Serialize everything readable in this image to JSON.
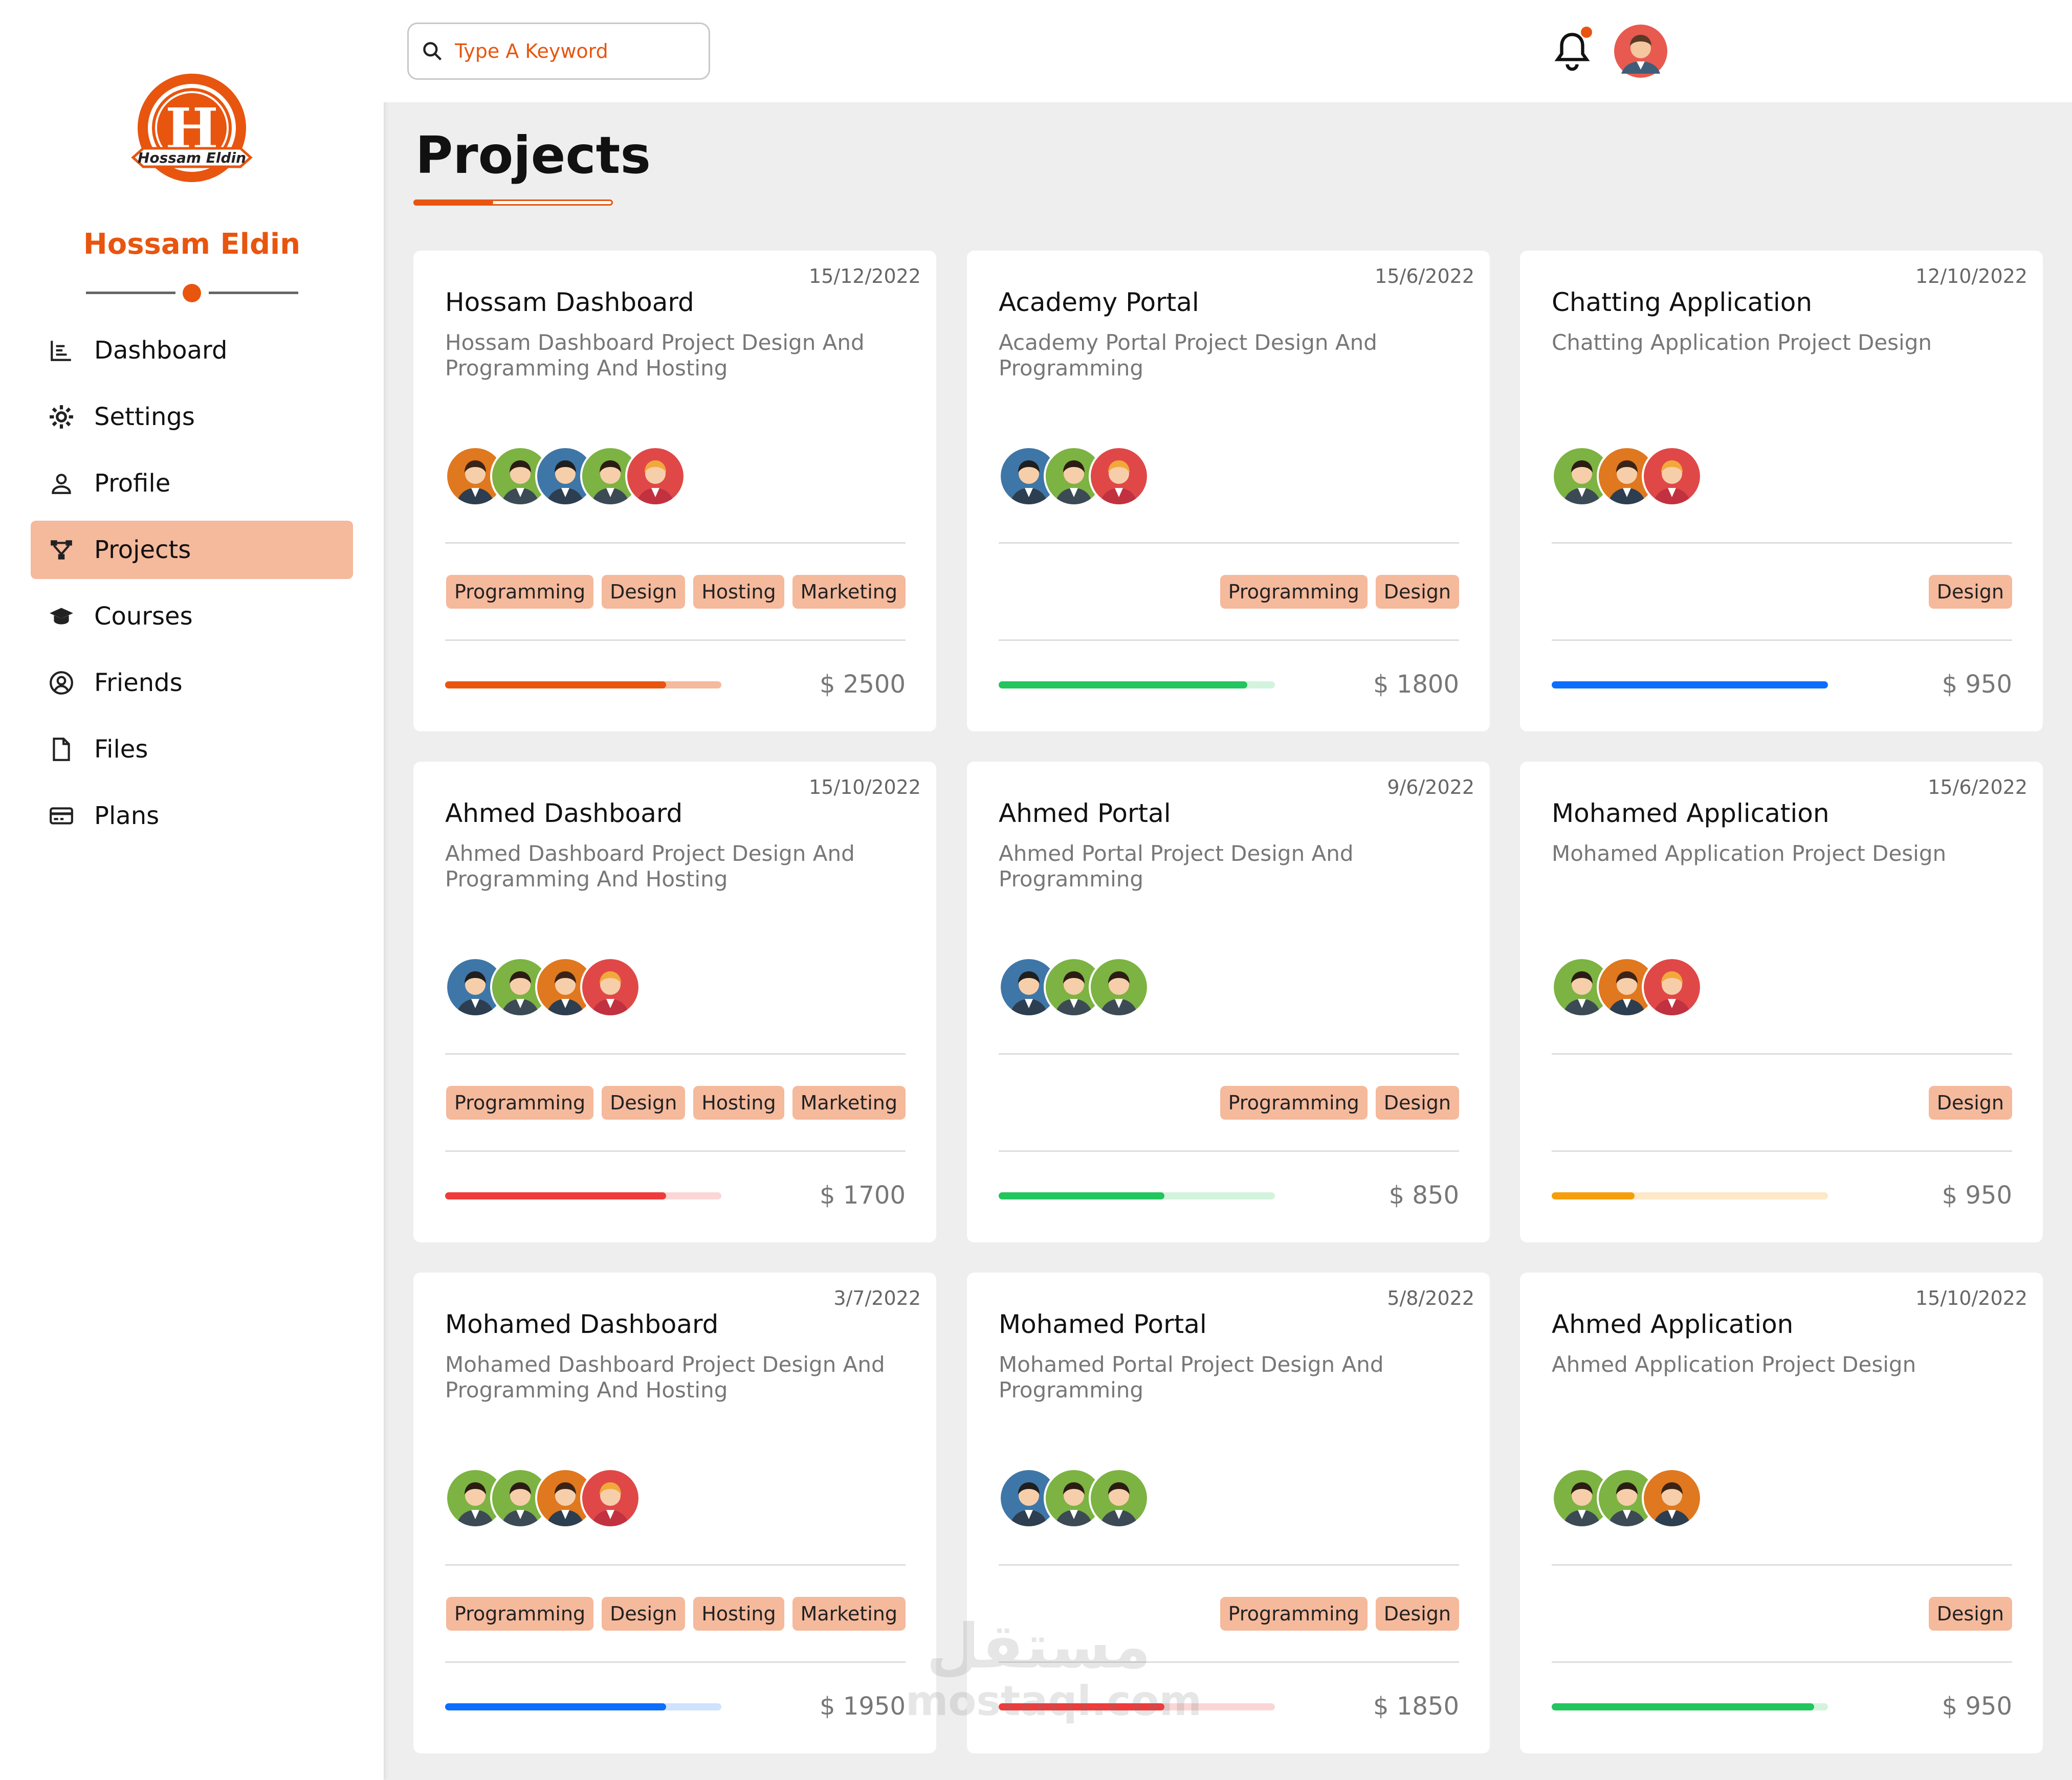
{
  "brand": {
    "name": "Hossam Eldin",
    "logo_letter": "H",
    "logo_text": "Hossam Eldin",
    "accent": "#e8550f"
  },
  "search": {
    "placeholder": "Type A Keyword",
    "value": ""
  },
  "notifications": {
    "has_unread": true
  },
  "page": {
    "title": "Projects"
  },
  "sidebar": {
    "items": [
      {
        "label": "Dashboard",
        "icon": "chart-icon",
        "active": false
      },
      {
        "label": "Settings",
        "icon": "gear-icon",
        "active": false
      },
      {
        "label": "Profile",
        "icon": "user-icon",
        "active": false
      },
      {
        "label": "Projects",
        "icon": "diagram-icon",
        "active": true
      },
      {
        "label": "Courses",
        "icon": "graduation-cap-icon",
        "active": false
      },
      {
        "label": "Friends",
        "icon": "user-circle-icon",
        "active": false
      },
      {
        "label": "Files",
        "icon": "file-icon",
        "active": false
      },
      {
        "label": "Plans",
        "icon": "credit-card-icon",
        "active": false
      }
    ]
  },
  "projects": [
    {
      "date": "15/12/2022",
      "title": "Hossam Dashboard",
      "desc": "Hossam Dashboard Project Design And Programming And Hosting",
      "avatars": [
        "orange",
        "green",
        "blue",
        "green",
        "red"
      ],
      "tags": [
        "Programming",
        "Design",
        "Hosting",
        "Marketing"
      ],
      "progress": 0.8,
      "bar_color": "#e8550f",
      "track_color": "#f5b99c",
      "price": "$ 2500"
    },
    {
      "date": "15/6/2022",
      "title": "Academy Portal",
      "desc": "Academy Portal Project Design And Programming",
      "avatars": [
        "blue",
        "green",
        "red"
      ],
      "tags": [
        "Programming",
        "Design"
      ],
      "progress": 0.9,
      "bar_color": "#22c55e",
      "track_color": "#d3f3dd",
      "price": "$ 1800"
    },
    {
      "date": "12/10/2022",
      "title": "Chatting Application",
      "desc": "Chatting Application Project Design",
      "avatars": [
        "green",
        "orange",
        "red"
      ],
      "tags": [
        "Design"
      ],
      "progress": 1.0,
      "bar_color": "#0d6efd",
      "track_color": "#cfe2ff",
      "price": "$ 950"
    },
    {
      "date": "15/10/2022",
      "title": "Ahmed Dashboard",
      "desc": "Ahmed Dashboard Project Design And Programming And Hosting",
      "avatars": [
        "blue",
        "green",
        "orange",
        "red"
      ],
      "tags": [
        "Programming",
        "Design",
        "Hosting",
        "Marketing"
      ],
      "progress": 0.8,
      "bar_color": "#ef3b3b",
      "track_color": "#fbd6d6",
      "price": "$ 1700"
    },
    {
      "date": "9/6/2022",
      "title": "Ahmed Portal",
      "desc": "Ahmed Portal Project Design And Programming",
      "avatars": [
        "blue",
        "green",
        "green"
      ],
      "tags": [
        "Programming",
        "Design"
      ],
      "progress": 0.6,
      "bar_color": "#22c55e",
      "track_color": "#d3f3dd",
      "price": "$ 850"
    },
    {
      "date": "15/6/2022",
      "title": "Mohamed Application",
      "desc": "Mohamed Application Project Design",
      "avatars": [
        "green",
        "orange",
        "red"
      ],
      "tags": [
        "Design"
      ],
      "progress": 0.3,
      "bar_color": "#f59e0b",
      "track_color": "#fde8c8",
      "price": "$ 950"
    },
    {
      "date": "3/7/2022",
      "title": "Mohamed Dashboard",
      "desc": "Mohamed Dashboard Project Design And Programming And Hosting",
      "avatars": [
        "green",
        "green",
        "orange",
        "red"
      ],
      "tags": [
        "Programming",
        "Design",
        "Hosting",
        "Marketing"
      ],
      "progress": 0.8,
      "bar_color": "#0d6efd",
      "track_color": "#cfe2ff",
      "price": "$ 1950"
    },
    {
      "date": "5/8/2022",
      "title": "Mohamed Portal",
      "desc": "Mohamed Portal Project Design And Programming",
      "avatars": [
        "blue",
        "green",
        "green"
      ],
      "tags": [
        "Programming",
        "Design"
      ],
      "progress": 0.6,
      "bar_color": "#ef3b3b",
      "track_color": "#fbd6d6",
      "price": "$ 1850"
    },
    {
      "date": "15/10/2022",
      "title": "Ahmed Application",
      "desc": "Ahmed Application Project Design",
      "avatars": [
        "green",
        "green",
        "orange"
      ],
      "tags": [
        "Design"
      ],
      "progress": 0.95,
      "bar_color": "#22c55e",
      "track_color": "#d3f3dd",
      "price": "$ 950"
    }
  ],
  "watermark": {
    "arabic": "مستقل",
    "latin": "mostaql.com"
  }
}
